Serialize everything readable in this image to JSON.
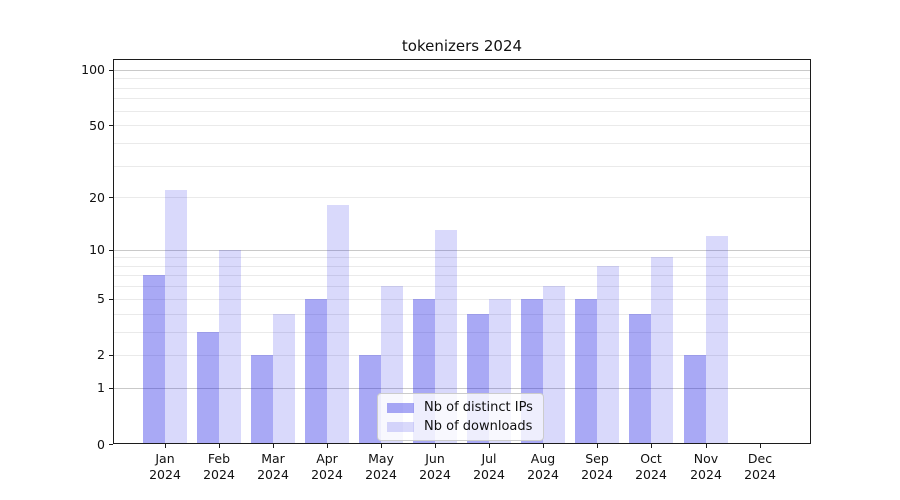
{
  "title": "tokenizers 2024",
  "legend": {
    "items": [
      {
        "label": "Nb of distinct IPs",
        "color": "rgba(30,30,230,0.38)"
      },
      {
        "label": "Nb of downloads",
        "color": "rgba(30,30,230,0.17)"
      }
    ]
  },
  "chart_data": {
    "type": "bar",
    "title": "tokenizers 2024",
    "categories": [
      {
        "month": "Jan",
        "year": "2024"
      },
      {
        "month": "Feb",
        "year": "2024"
      },
      {
        "month": "Mar",
        "year": "2024"
      },
      {
        "month": "Apr",
        "year": "2024"
      },
      {
        "month": "May",
        "year": "2024"
      },
      {
        "month": "Jun",
        "year": "2024"
      },
      {
        "month": "Jul",
        "year": "2024"
      },
      {
        "month": "Aug",
        "year": "2024"
      },
      {
        "month": "Sep",
        "year": "2024"
      },
      {
        "month": "Oct",
        "year": "2024"
      },
      {
        "month": "Nov",
        "year": "2024"
      },
      {
        "month": "Dec",
        "year": "2024"
      }
    ],
    "series": [
      {
        "name": "Nb of distinct IPs",
        "color": "rgba(30,30,230,0.38)",
        "values": [
          7,
          3,
          2,
          5,
          2,
          5,
          4,
          5,
          5,
          4,
          2,
          0
        ]
      },
      {
        "name": "Nb of downloads",
        "color": "rgba(30,30,230,0.17)",
        "values": [
          22,
          10,
          4,
          18,
          6,
          13,
          5,
          6,
          8,
          9,
          12,
          0
        ]
      }
    ],
    "xlabel": "",
    "ylabel": "",
    "yscale": "log10(value+1)",
    "ylim": [
      0,
      114
    ],
    "y_ticks": [
      0,
      1,
      2,
      5,
      10,
      20,
      50,
      100
    ],
    "y_major_gridlines": [
      1,
      10,
      100
    ],
    "y_minor_gridlines": [
      2,
      3,
      4,
      5,
      6,
      7,
      8,
      9,
      20,
      30,
      40,
      50,
      60,
      70,
      80,
      90
    ],
    "grid": "on",
    "legend_position": "lower center",
    "colors": {
      "major_grid": "#c9c9c9",
      "minor_grid": "#eaeaea",
      "spine": "#1c1c1c",
      "text": "#111111",
      "background": "#ffffff"
    }
  }
}
